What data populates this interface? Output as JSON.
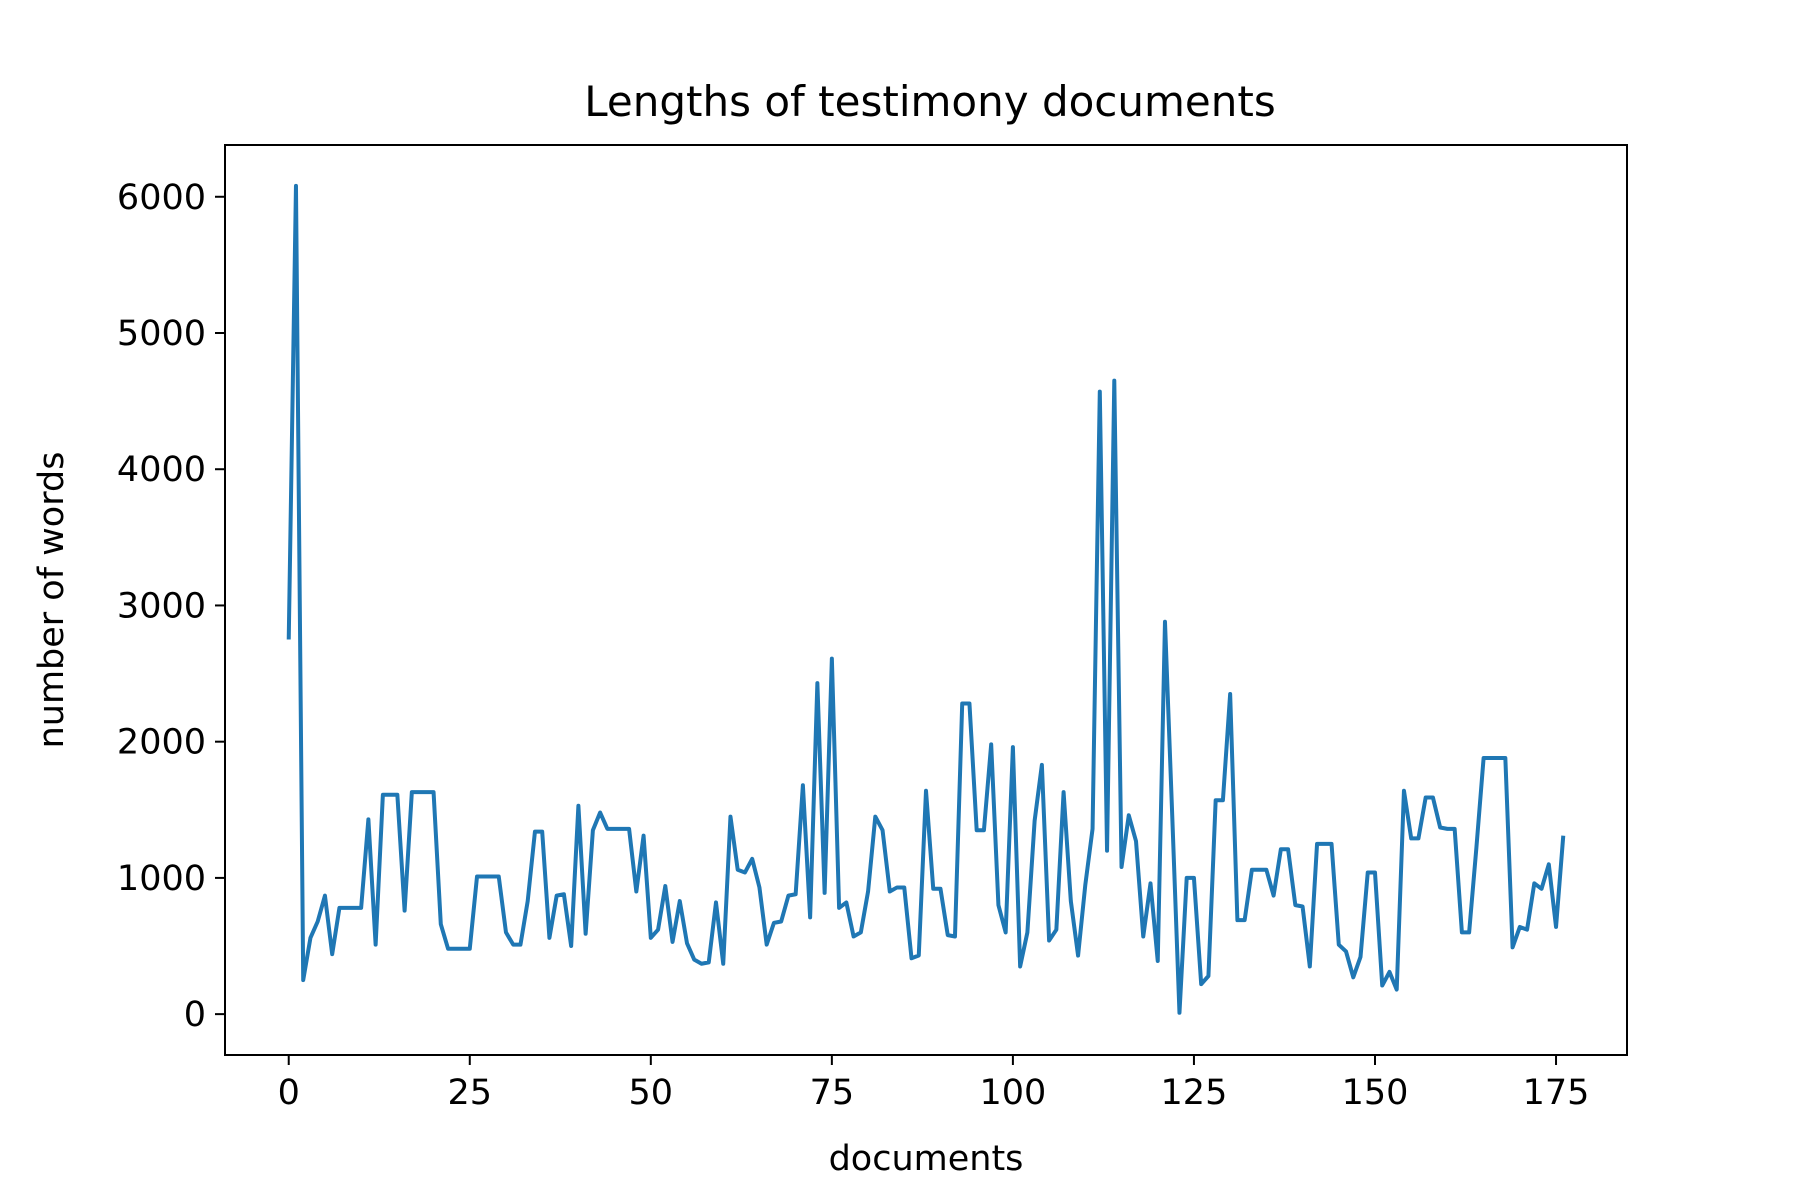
{
  "chart_data": {
    "type": "line",
    "title": "Lengths of testimony documents",
    "xlabel": "documents",
    "ylabel": "number of words",
    "xlim": [
      -8.8,
      184.8
    ],
    "ylim": [
      -300,
      6380
    ],
    "xticks": [
      0,
      25,
      50,
      75,
      100,
      125,
      150,
      175
    ],
    "yticks": [
      0,
      1000,
      2000,
      3000,
      4000,
      5000,
      6000
    ],
    "grid": false,
    "legend": "none",
    "colors": {
      "line": "#1f77b4"
    },
    "series": [
      {
        "values": [
          2750,
          6080,
          250,
          560,
          680,
          870,
          440,
          780,
          780,
          780,
          780,
          1430,
          510,
          1610,
          1610,
          1610,
          760,
          1630,
          1630,
          1630,
          1630,
          660,
          480,
          480,
          480,
          480,
          1010,
          1010,
          1010,
          1010,
          600,
          510,
          510,
          830,
          1340,
          1340,
          560,
          870,
          880,
          500,
          1530,
          590,
          1350,
          1480,
          1360,
          1360,
          1360,
          1360,
          900,
          1310,
          560,
          620,
          940,
          530,
          830,
          520,
          400,
          370,
          380,
          820,
          370,
          1450,
          1060,
          1040,
          1140,
          930,
          510,
          670,
          680,
          870,
          880,
          1680,
          710,
          2430,
          890,
          2610,
          780,
          820,
          570,
          600,
          900,
          1450,
          1350,
          900,
          930,
          930,
          410,
          430,
          1640,
          920,
          920,
          580,
          570,
          2280,
          2280,
          1350,
          1350,
          1980,
          800,
          600,
          1960,
          350,
          600,
          1420,
          1830,
          540,
          620,
          1630,
          830,
          430,
          950,
          1360,
          4570,
          1200,
          4650,
          1080,
          1460,
          1270,
          570,
          960,
          390,
          2880,
          1460,
          10,
          1000,
          1000,
          220,
          280,
          1570,
          1570,
          2350,
          690,
          690,
          1060,
          1060,
          1060,
          870,
          1210,
          1210,
          800,
          790,
          350,
          1250,
          1250,
          1250,
          510,
          460,
          270,
          420,
          1040,
          1040,
          210,
          310,
          180,
          1640,
          1290,
          1290,
          1590,
          1590,
          1370,
          1360,
          1360,
          600,
          600,
          1220,
          1880,
          1880,
          1880,
          1880,
          490,
          640,
          620,
          960,
          920,
          1100,
          640,
          1310
        ]
      }
    ]
  }
}
